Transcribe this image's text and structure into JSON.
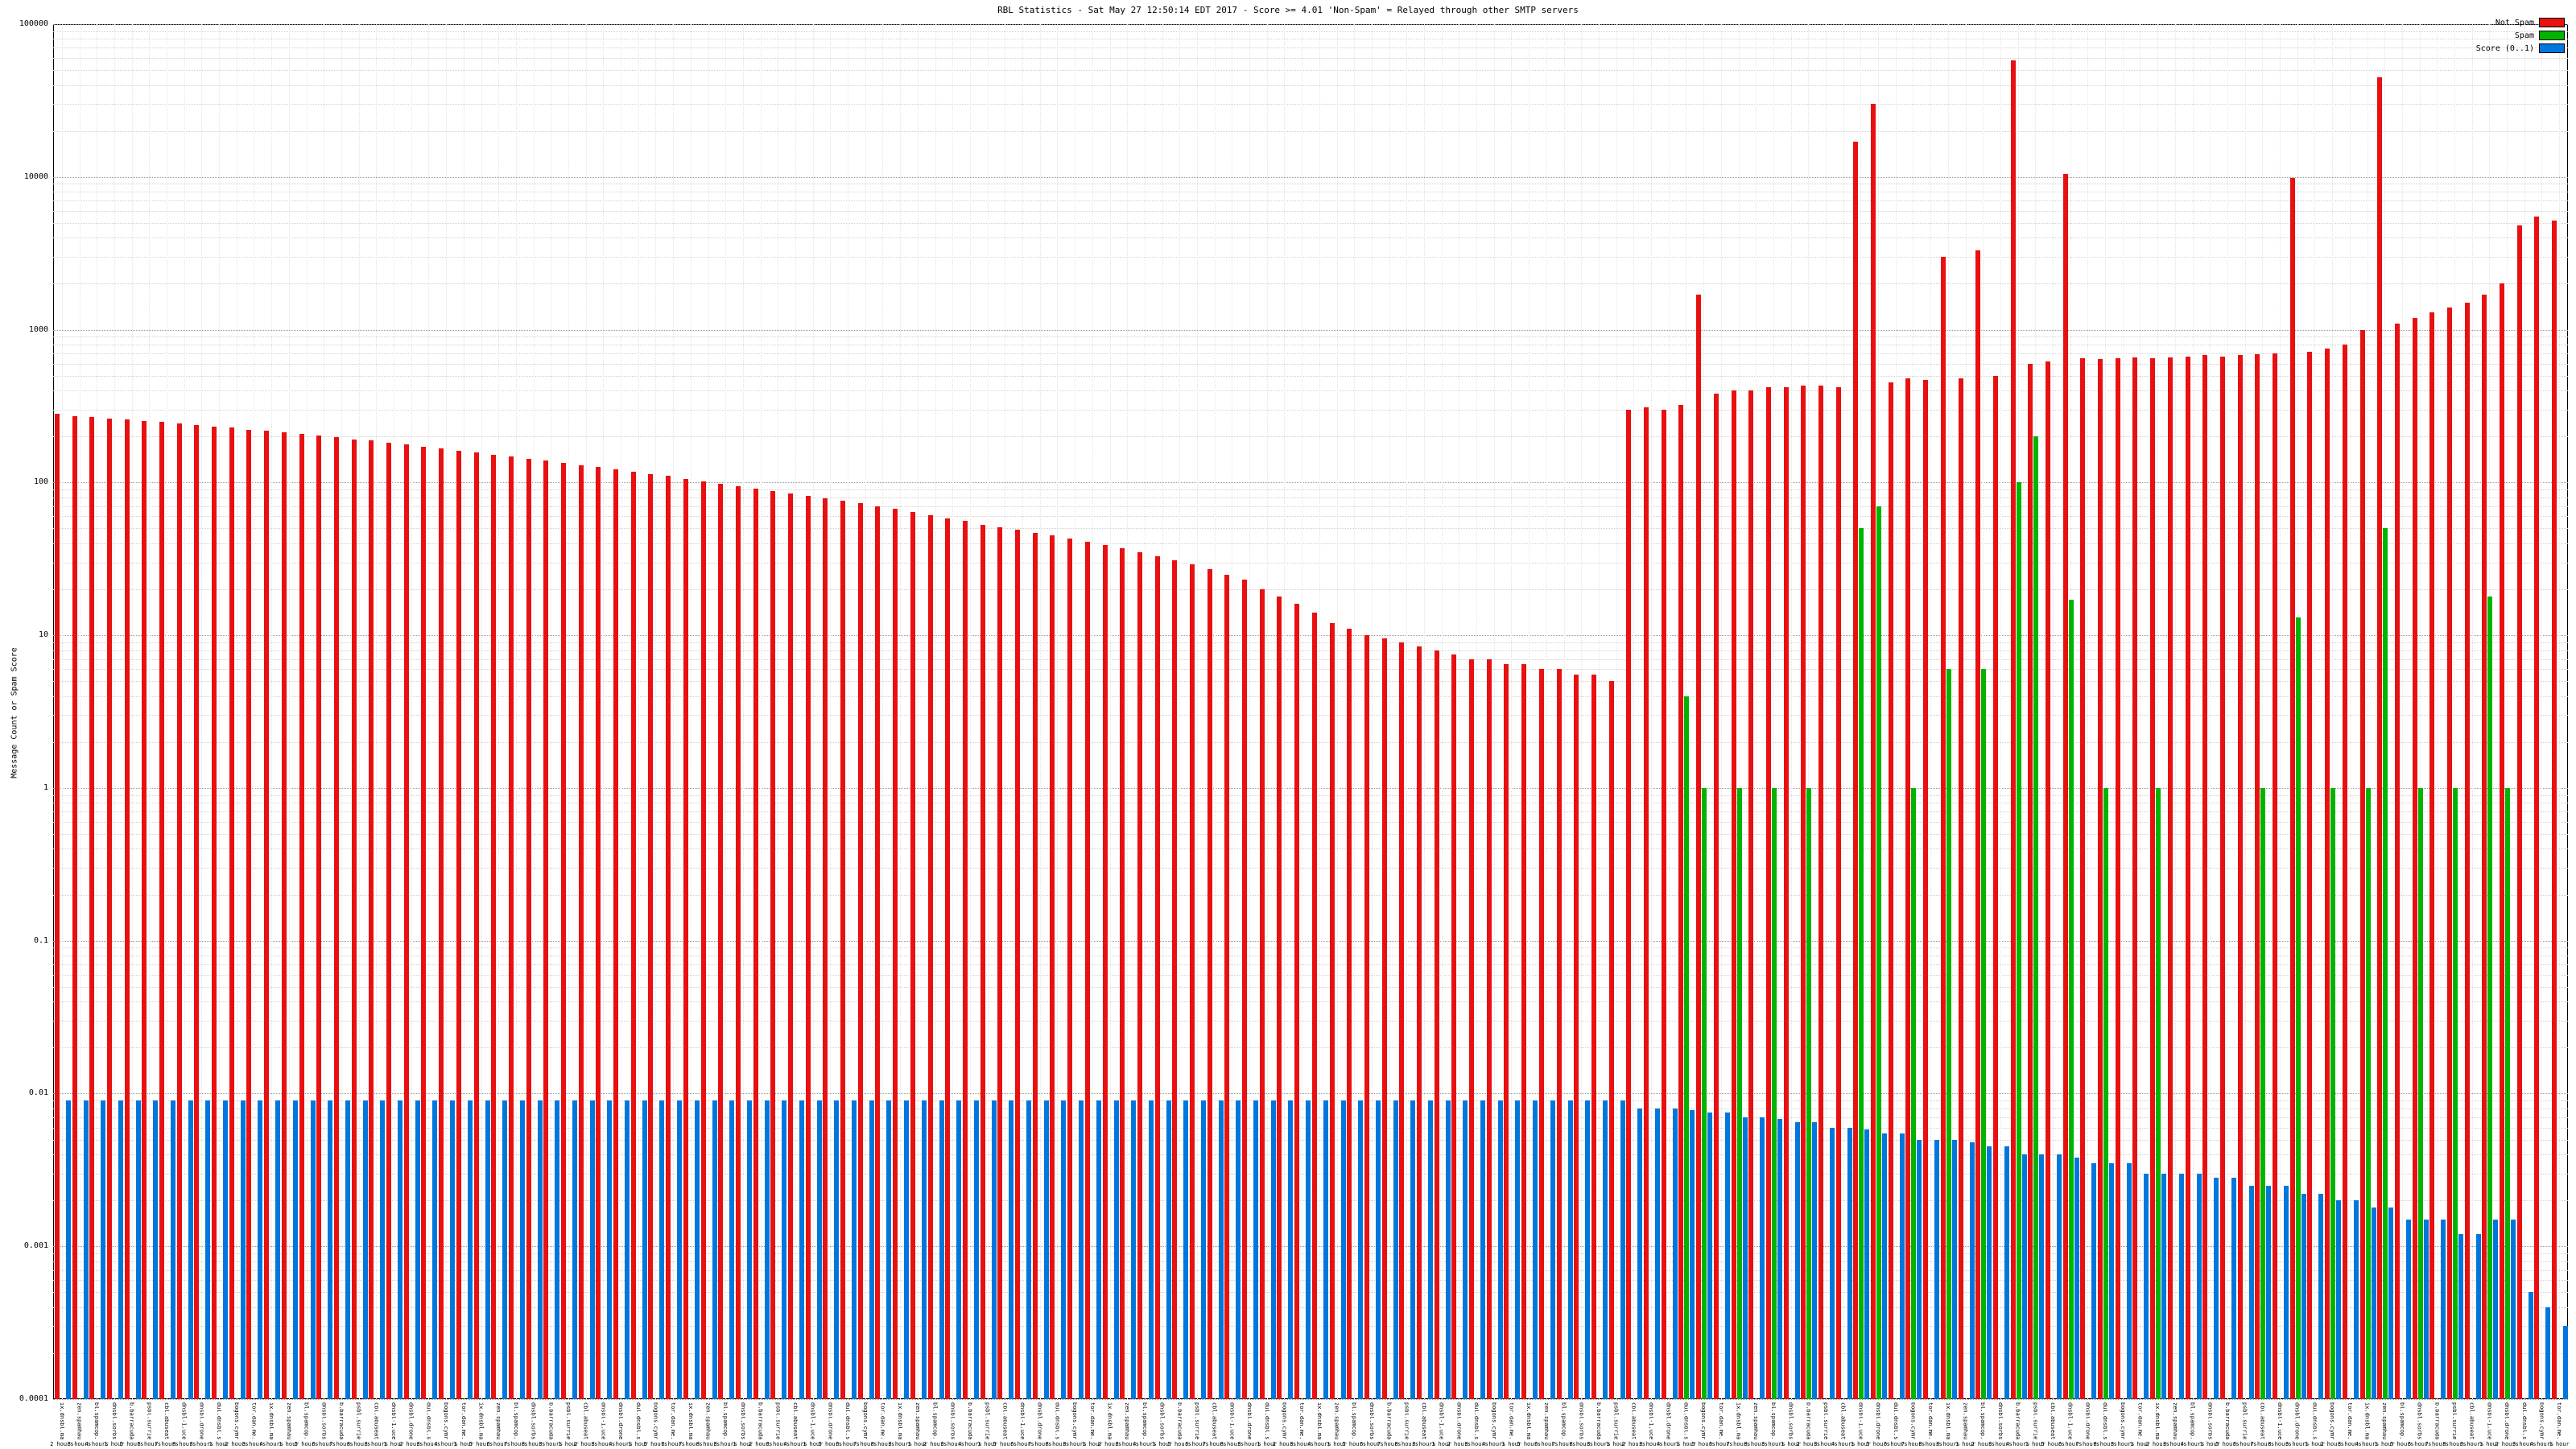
{
  "chart_data": {
    "type": "bar",
    "title": "RBL Statistics - Sat May 27 12:50:14 EDT 2017 - Score >= 4.01 'Non-Spam' = Relayed through other SMTP servers",
    "xlabel": "",
    "ylabel": "Message Count or Spam Score",
    "yscale": "log",
    "ylim": [
      0.0001,
      100000
    ],
    "yticks": [
      "100000",
      "10000",
      "1000",
      "100",
      "10",
      "1",
      "0.1",
      "0.01",
      "0.001",
      "0.0001"
    ],
    "grid": true,
    "legend_position": "top-right",
    "legend": [
      {
        "label": "Not Spam",
        "color": "#e81010"
      },
      {
        "label": "Spam",
        "color": "#00b400"
      },
      {
        "label": "Score (0..1)",
        "color": "#0077dd"
      }
    ],
    "n_categories": 144,
    "x_label_cycle_rbl": [
      "ix.dnsbl.manitu.net",
      "zen.spamhaus.org",
      "bl.spamcop.net",
      "dnsbl.sorbs.net",
      "b.barracudacentral.org",
      "psbl.surriel.com",
      "cbl.abuseat.org",
      "dnsbl-1.uceprotect.net",
      "dnsbl.dronebl.org",
      "dul.dnsbl.sorbs.net",
      "bogons.cymru.com",
      "tor.dan.me.uk"
    ],
    "x_label_cycle_hours": [
      "2 hours",
      "3 hours",
      "4 hours",
      "1 hour",
      "5 hours",
      "6 hours",
      "7 hours",
      "8 hours",
      "3 hours",
      "1 hour"
    ],
    "series": [
      {
        "name": "Not Spam",
        "color": "#e81010",
        "values": [
          280,
          272,
          268,
          262,
          258,
          252,
          248,
          242,
          238,
          232,
          228,
          222,
          218,
          212,
          208,
          202,
          198,
          192,
          188,
          182,
          178,
          172,
          168,
          162,
          158,
          152,
          148,
          143,
          139,
          134,
          130,
          126,
          122,
          118,
          114,
          110,
          106,
          102,
          98,
          95,
          91,
          88,
          85,
          82,
          79,
          76,
          73,
          70,
          67,
          64,
          61,
          58,
          56,
          53,
          51,
          49,
          47,
          45,
          43,
          41,
          39,
          37,
          35,
          33,
          31,
          29,
          27,
          25,
          23,
          20,
          18,
          16,
          14,
          12,
          11,
          10,
          9.5,
          9,
          8.5,
          8,
          7.5,
          7,
          7,
          6.5,
          6.5,
          6,
          6,
          5.5,
          5.5,
          5,
          300,
          310,
          300,
          320,
          1700,
          380,
          400,
          400,
          420,
          420,
          430,
          430,
          420,
          17000,
          30000,
          450,
          480,
          470,
          3000,
          480,
          3300,
          500,
          58000,
          600,
          620,
          10500,
          650,
          640,
          650,
          660,
          650,
          660,
          670,
          680,
          670,
          680,
          690,
          700,
          9800,
          720,
          750,
          800,
          1000,
          45000,
          1100,
          1200,
          1300,
          1400,
          1500,
          1700,
          2000,
          4800,
          5500,
          5200
        ]
      },
      {
        "name": "Spam",
        "color": "#00b400",
        "values": [
          null,
          null,
          null,
          null,
          null,
          null,
          null,
          null,
          null,
          null,
          null,
          null,
          null,
          null,
          null,
          null,
          null,
          null,
          null,
          null,
          null,
          null,
          null,
          null,
          null,
          null,
          null,
          null,
          null,
          null,
          null,
          null,
          null,
          null,
          null,
          null,
          null,
          null,
          null,
          null,
          null,
          null,
          null,
          null,
          null,
          null,
          null,
          null,
          null,
          null,
          null,
          null,
          null,
          null,
          null,
          null,
          null,
          null,
          null,
          null,
          null,
          null,
          null,
          null,
          null,
          null,
          null,
          null,
          null,
          null,
          null,
          null,
          null,
          null,
          null,
          null,
          null,
          null,
          null,
          null,
          null,
          null,
          null,
          null,
          null,
          null,
          null,
          null,
          null,
          null,
          null,
          null,
          null,
          4,
          1,
          null,
          1,
          null,
          1,
          null,
          1,
          null,
          null,
          50,
          70,
          null,
          1,
          null,
          6,
          null,
          6,
          null,
          100,
          200,
          null,
          17,
          null,
          1,
          null,
          null,
          1,
          null,
          null,
          null,
          null,
          null,
          1,
          null,
          13,
          null,
          1,
          null,
          1,
          50,
          null,
          1,
          null,
          1,
          null,
          18,
          1,
          null,
          null,
          null
        ]
      },
      {
        "name": "Score (0..1)",
        "color": "#0077dd",
        "values": [
          0.009,
          0.009,
          0.009,
          0.009,
          0.009,
          0.009,
          0.009,
          0.009,
          0.009,
          0.009,
          0.009,
          0.009,
          0.009,
          0.009,
          0.009,
          0.009,
          0.009,
          0.009,
          0.009,
          0.009,
          0.009,
          0.009,
          0.009,
          0.009,
          0.009,
          0.009,
          0.009,
          0.009,
          0.009,
          0.009,
          0.009,
          0.009,
          0.009,
          0.009,
          0.009,
          0.009,
          0.009,
          0.009,
          0.009,
          0.009,
          0.009,
          0.009,
          0.009,
          0.009,
          0.009,
          0.009,
          0.009,
          0.009,
          0.009,
          0.009,
          0.009,
          0.009,
          0.009,
          0.009,
          0.009,
          0.009,
          0.009,
          0.009,
          0.009,
          0.009,
          0.009,
          0.009,
          0.009,
          0.009,
          0.009,
          0.009,
          0.009,
          0.009,
          0.009,
          0.009,
          0.009,
          0.009,
          0.009,
          0.009,
          0.009,
          0.009,
          0.009,
          0.009,
          0.009,
          0.009,
          0.009,
          0.009,
          0.009,
          0.009,
          0.009,
          0.009,
          0.009,
          0.009,
          0.009,
          0.009,
          0.008,
          0.008,
          0.008,
          0.0078,
          0.0075,
          0.0075,
          0.007,
          0.007,
          0.0068,
          0.0065,
          0.0065,
          0.006,
          0.006,
          0.0058,
          0.0055,
          0.0055,
          0.005,
          0.005,
          0.005,
          0.0048,
          0.0045,
          0.0045,
          0.004,
          0.004,
          0.004,
          0.0038,
          0.0035,
          0.0035,
          0.0035,
          0.003,
          0.003,
          0.003,
          0.003,
          0.0028,
          0.0028,
          0.0025,
          0.0025,
          0.0025,
          0.0022,
          0.0022,
          0.002,
          0.002,
          0.0018,
          0.0018,
          0.0015,
          0.0015,
          0.0015,
          0.0012,
          0.0012,
          0.0015,
          0.0015,
          0.0005,
          0.0004,
          0.0003
        ]
      }
    ]
  }
}
